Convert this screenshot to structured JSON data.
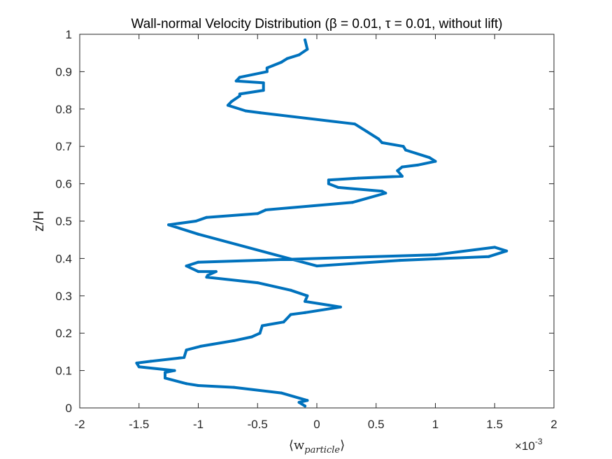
{
  "chart_data": {
    "type": "line",
    "title": "Wall-normal Velocity Distribution (β = 0.01, τ = 0.01, without lift)",
    "xlabel": "⟨w_particle⟩",
    "xlabel_main": "⟨w",
    "xlabel_sub": "particle",
    "xlabel_end": "⟩",
    "ylabel": "z/H",
    "x_multiplier": "×10",
    "x_multiplier_exp": "-3",
    "xlim": [
      -2,
      2
    ],
    "ylim": [
      0,
      1
    ],
    "xticks": [
      -2,
      -1.5,
      -1,
      -0.5,
      0,
      0.5,
      1,
      1.5,
      2
    ],
    "xtick_labels": [
      "-2",
      "-1.5",
      "-1",
      "-0.5",
      "0",
      "0.5",
      "1",
      "1.5",
      "2"
    ],
    "yticks": [
      0,
      0.1,
      0.2,
      0.3,
      0.4,
      0.5,
      0.6,
      0.7,
      0.8,
      0.9,
      1
    ],
    "ytick_labels": [
      "0",
      "0.1",
      "0.2",
      "0.3",
      "0.4",
      "0.5",
      "0.6",
      "0.7",
      "0.8",
      "0.9",
      "1"
    ],
    "grid": false,
    "series": [
      {
        "color": "#0072BD",
        "x": [
          -0.1,
          -0.15,
          -0.08,
          -0.3,
          -0.7,
          -1.0,
          -1.1,
          -1.28,
          -1.28,
          -1.2,
          -1.5,
          -1.52,
          -1.4,
          -1.12,
          -1.1,
          -0.98,
          -0.7,
          -0.55,
          -0.48,
          -0.46,
          -0.28,
          -0.22,
          -0.1,
          0.2,
          0.1,
          -0.1,
          -0.08,
          -0.22,
          -0.5,
          -0.93,
          -0.92,
          -0.85,
          -1.0,
          -1.1,
          -1.0,
          1.0,
          1.5,
          1.6,
          1.45,
          0.7,
          0.0,
          -1.0,
          -1.25,
          -1.02,
          -0.93,
          -0.5,
          -0.43,
          0.3,
          0.58,
          0.55,
          0.18,
          0.1,
          0.1,
          0.35,
          0.72,
          0.68,
          0.72,
          0.85,
          1.0,
          0.95,
          0.75,
          0.73,
          0.55,
          0.52,
          0.42,
          0.32,
          -0.48,
          -0.6,
          -0.75,
          -0.72,
          -0.65,
          -0.65,
          -0.45,
          -0.45,
          -0.68,
          -0.65,
          -0.42,
          -0.42,
          -0.3,
          -0.25,
          -0.15,
          -0.08,
          -0.1
        ],
        "y": [
          0.005,
          0.015,
          0.02,
          0.04,
          0.055,
          0.06,
          0.065,
          0.08,
          0.095,
          0.1,
          0.11,
          0.12,
          0.125,
          0.135,
          0.155,
          0.165,
          0.18,
          0.19,
          0.2,
          0.22,
          0.23,
          0.25,
          0.255,
          0.27,
          0.275,
          0.285,
          0.3,
          0.315,
          0.335,
          0.35,
          0.355,
          0.365,
          0.365,
          0.38,
          0.39,
          0.41,
          0.43,
          0.42,
          0.405,
          0.395,
          0.38,
          0.465,
          0.49,
          0.5,
          0.51,
          0.52,
          0.53,
          0.55,
          0.575,
          0.58,
          0.59,
          0.6,
          0.61,
          0.615,
          0.62,
          0.635,
          0.645,
          0.65,
          0.66,
          0.67,
          0.69,
          0.7,
          0.71,
          0.72,
          0.74,
          0.76,
          0.79,
          0.795,
          0.81,
          0.82,
          0.835,
          0.84,
          0.85,
          0.87,
          0.875,
          0.885,
          0.9,
          0.91,
          0.925,
          0.935,
          0.945,
          0.96,
          0.985
        ]
      }
    ]
  }
}
